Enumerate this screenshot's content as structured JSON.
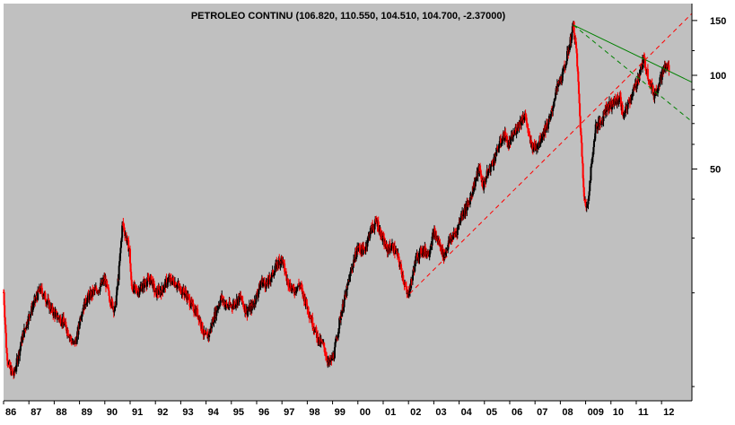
{
  "chart_data": {
    "type": "bar",
    "subtype": "ohlc-candlestick",
    "title": "PETROLEO CONTINU (106.820, 110.550, 104.510, 104.700, -2.37000)",
    "xlabel": "",
    "ylabel": "",
    "y_scale": "log",
    "ylim": [
      9,
      170
    ],
    "y_ticks": [
      50,
      100,
      150
    ],
    "y_tick_labels": [
      "50",
      "100",
      "150"
    ],
    "x_tick_labels": [
      "86",
      "87",
      "88",
      "89",
      "90",
      "91",
      "92",
      "93",
      "94",
      "95",
      "96",
      "97",
      "98",
      "99",
      "00",
      "01",
      "02",
      "03",
      "04",
      "05",
      "06",
      "07",
      "08",
      "009",
      "10",
      "11",
      "12"
    ],
    "x_tick_years": [
      1986,
      1987,
      1988,
      1989,
      1990,
      1991,
      1992,
      1993,
      1994,
      1995,
      1996,
      1997,
      1998,
      1999,
      2000,
      2001,
      2002,
      2003,
      2004,
      2005,
      2006,
      2007,
      2008,
      2009,
      2010,
      2011,
      2012
    ],
    "xlim": [
      1986.0,
      2013.2
    ],
    "colors": {
      "background": "#c0c0c0",
      "up": "#000000",
      "down": "#ff0000",
      "trend_primary": "#008000",
      "trend_secondary": "#008000",
      "support": "#ff0000"
    },
    "price_series": [
      [
        1986.0,
        20.1
      ],
      [
        1986.12,
        12.8
      ],
      [
        1986.25,
        11.4
      ],
      [
        1986.4,
        10.9
      ],
      [
        1986.55,
        12.2
      ],
      [
        1986.75,
        14.5
      ],
      [
        1987.0,
        16.8
      ],
      [
        1987.2,
        18.5
      ],
      [
        1987.45,
        20.6
      ],
      [
        1987.7,
        19.0
      ],
      [
        1987.9,
        17.6
      ],
      [
        1988.1,
        16.9
      ],
      [
        1988.35,
        16.2
      ],
      [
        1988.55,
        15.0
      ],
      [
        1988.75,
        13.6
      ],
      [
        1988.9,
        14.3
      ],
      [
        1989.05,
        17.1
      ],
      [
        1989.3,
        19.2
      ],
      [
        1989.55,
        20.1
      ],
      [
        1989.8,
        20.8
      ],
      [
        1990.0,
        22.2
      ],
      [
        1990.2,
        19.1
      ],
      [
        1990.4,
        17.6
      ],
      [
        1990.55,
        23.0
      ],
      [
        1990.7,
        33.5
      ],
      [
        1990.85,
        30.1
      ],
      [
        1990.98,
        27.2
      ],
      [
        1991.05,
        21.0
      ],
      [
        1991.3,
        20.2
      ],
      [
        1991.6,
        21.6
      ],
      [
        1991.85,
        22.1
      ],
      [
        1992.0,
        19.9
      ],
      [
        1992.25,
        20.4
      ],
      [
        1992.5,
        22.1
      ],
      [
        1992.75,
        21.7
      ],
      [
        1993.0,
        20.5
      ],
      [
        1993.2,
        19.9
      ],
      [
        1993.45,
        18.1
      ],
      [
        1993.7,
        17.0
      ],
      [
        1993.95,
        14.4
      ],
      [
        1994.1,
        14.6
      ],
      [
        1994.35,
        17.1
      ],
      [
        1994.6,
        19.3
      ],
      [
        1994.85,
        18.0
      ],
      [
        1995.1,
        18.4
      ],
      [
        1995.35,
        19.4
      ],
      [
        1995.6,
        17.4
      ],
      [
        1995.85,
        18.2
      ],
      [
        1996.0,
        19.6
      ],
      [
        1996.2,
        21.8
      ],
      [
        1996.4,
        21.2
      ],
      [
        1996.65,
        23.2
      ],
      [
        1996.85,
        25.1
      ],
      [
        1997.0,
        25.8
      ],
      [
        1997.2,
        22.0
      ],
      [
        1997.45,
        20.3
      ],
      [
        1997.7,
        21.3
      ],
      [
        1997.95,
        18.6
      ],
      [
        1998.2,
        16.1
      ],
      [
        1998.45,
        14.1
      ],
      [
        1998.65,
        13.5
      ],
      [
        1998.85,
        11.8
      ],
      [
        1999.05,
        12.6
      ],
      [
        1999.3,
        16.6
      ],
      [
        1999.55,
        20.2
      ],
      [
        1999.8,
        24.8
      ],
      [
        2000.0,
        27.9
      ],
      [
        2000.25,
        27.3
      ],
      [
        2000.5,
        31.7
      ],
      [
        2000.75,
        34.0
      ],
      [
        2000.95,
        30.2
      ],
      [
        2001.15,
        27.5
      ],
      [
        2001.35,
        28.3
      ],
      [
        2001.55,
        26.6
      ],
      [
        2001.75,
        23.1
      ],
      [
        2001.95,
        19.6
      ],
      [
        2002.1,
        21.4
      ],
      [
        2002.3,
        25.9
      ],
      [
        2002.55,
        27.5
      ],
      [
        2002.8,
        26.9
      ],
      [
        2003.0,
        31.3
      ],
      [
        2003.2,
        29.0
      ],
      [
        2003.4,
        26.3
      ],
      [
        2003.65,
        29.7
      ],
      [
        2003.9,
        31.4
      ],
      [
        2004.1,
        35.8
      ],
      [
        2004.35,
        38.2
      ],
      [
        2004.6,
        44.6
      ],
      [
        2004.8,
        50.5
      ],
      [
        2004.95,
        44.0
      ],
      [
        2005.1,
        48.0
      ],
      [
        2005.35,
        52.9
      ],
      [
        2005.6,
        60.1
      ],
      [
        2005.8,
        64.8
      ],
      [
        2005.95,
        59.6
      ],
      [
        2006.1,
        63.2
      ],
      [
        2006.35,
        69.5
      ],
      [
        2006.6,
        75.2
      ],
      [
        2006.8,
        61.4
      ],
      [
        2006.95,
        58.4
      ],
      [
        2007.1,
        59.9
      ],
      [
        2007.35,
        66.1
      ],
      [
        2007.6,
        72.1
      ],
      [
        2007.8,
        86.8
      ],
      [
        2007.95,
        94.5
      ],
      [
        2008.1,
        100.5
      ],
      [
        2008.3,
        118.5
      ],
      [
        2008.45,
        134.9
      ],
      [
        2008.52,
        145.3
      ],
      [
        2008.65,
        115.6
      ],
      [
        2008.8,
        67.1
      ],
      [
        2008.95,
        40.2
      ],
      [
        2009.05,
        36.7
      ],
      [
        2009.2,
        48.5
      ],
      [
        2009.4,
        68.9
      ],
      [
        2009.6,
        70.1
      ],
      [
        2009.8,
        78.8
      ],
      [
        2009.95,
        79.9
      ],
      [
        2010.1,
        81.4
      ],
      [
        2010.35,
        84.9
      ],
      [
        2010.5,
        73.3
      ],
      [
        2010.7,
        81.9
      ],
      [
        2010.95,
        91.4
      ],
      [
        2011.05,
        96.1
      ],
      [
        2011.3,
        112.8
      ],
      [
        2011.5,
        98.0
      ],
      [
        2011.7,
        86.4
      ],
      [
        2011.85,
        92.3
      ],
      [
        2011.98,
        98.8
      ],
      [
        2012.1,
        105.4
      ],
      [
        2012.25,
        106.8
      ],
      [
        2012.3,
        104.7
      ]
    ],
    "trendlines": [
      {
        "name": "resistance",
        "style": "solid",
        "color": "#008000",
        "from": [
          2008.52,
          145
        ],
        "to": [
          2013.2,
          95
        ]
      },
      {
        "name": "lower-channel",
        "style": "dashed",
        "color": "#008000",
        "from": [
          2008.52,
          145
        ],
        "to": [
          2013.2,
          71
        ]
      },
      {
        "name": "support",
        "style": "dashed",
        "color": "#ff0000",
        "from": [
          2002.05,
          19.9
        ],
        "to": [
          2013.2,
          158
        ]
      }
    ]
  }
}
